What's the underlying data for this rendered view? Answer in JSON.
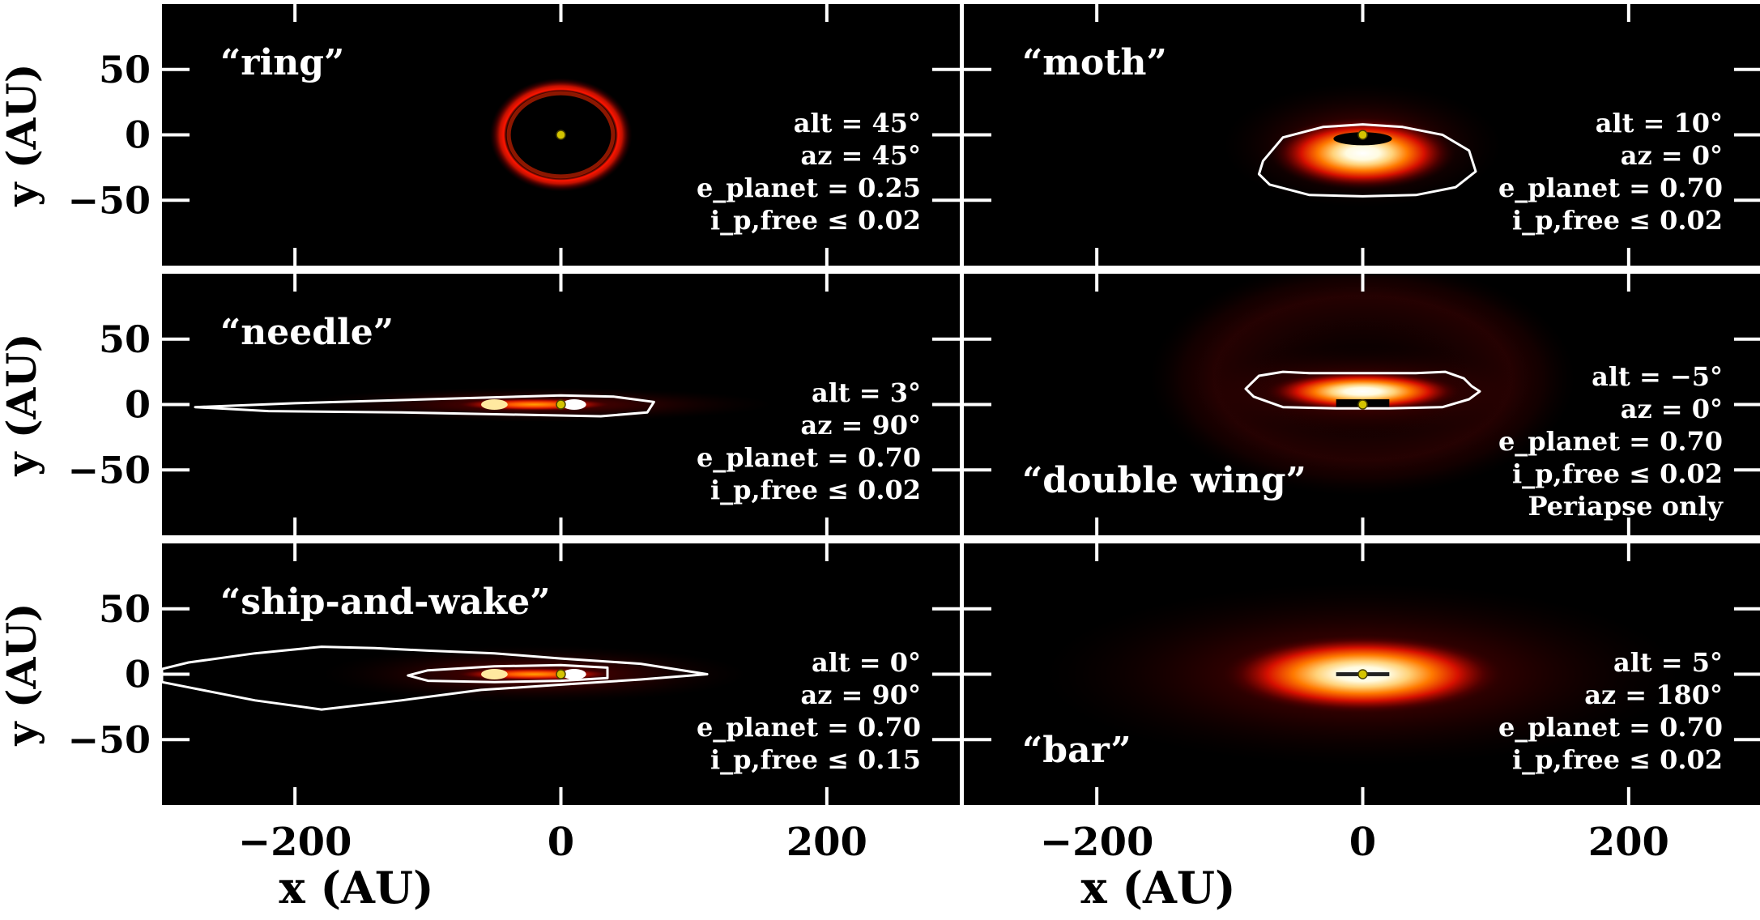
{
  "chart_data": {
    "type": "heatmap",
    "layout": {
      "rows": 3,
      "cols": 2
    },
    "xlabel": "x (AU)",
    "ylabel": "y (AU)",
    "xlim": [
      -300,
      300
    ],
    "ylim": [
      -100,
      100
    ],
    "xticks": [
      -200,
      0,
      200
    ],
    "xtick_labels": [
      "−200",
      "0",
      "200"
    ],
    "yticks": [
      50,
      0,
      -50
    ],
    "ytick_labels": [
      "50",
      "0",
      "−50"
    ],
    "colors": {
      "background": "#000000",
      "star": "#d4c400",
      "contour": "#ffffff",
      "frame": "#ffffff"
    },
    "panels": [
      {
        "id": "ring",
        "title": "“ring”",
        "title_pos": "top-left",
        "params": [
          "alt = 45°",
          "az = 45°",
          "e_planet = 0.25",
          "i_p,free ≤ 0.02"
        ],
        "star": [
          0,
          0
        ],
        "morphology": {
          "shape": "ring",
          "center": [
            0,
            0
          ],
          "radius_x": 37,
          "radius_y": 30
        },
        "contours": []
      },
      {
        "id": "moth",
        "title": "“moth”",
        "title_pos": "top-left",
        "params": [
          "alt = 10°",
          "az = 0°",
          "e_planet = 0.70",
          "i_p,free ≤ 0.02"
        ],
        "star": [
          0,
          0
        ],
        "morphology": {
          "shape": "arc",
          "center": [
            0,
            -8
          ],
          "radius_x": 70,
          "radius_y": 28
        },
        "contours": [
          {
            "points": [
              [
                -75,
                -20
              ],
              [
                -60,
                -2
              ],
              [
                -30,
                6
              ],
              [
                0,
                8
              ],
              [
                30,
                6
              ],
              [
                60,
                0
              ],
              [
                80,
                -12
              ],
              [
                85,
                -28
              ],
              [
                70,
                -40
              ],
              [
                40,
                -46
              ],
              [
                0,
                -47
              ],
              [
                -40,
                -46
              ],
              [
                -70,
                -38
              ],
              [
                -78,
                -30
              ],
              [
                -75,
                -20
              ]
            ]
          }
        ]
      },
      {
        "id": "needle",
        "title": "“needle”",
        "title_pos": "top-left",
        "params": [
          "alt = 3°",
          "az = 90°",
          "e_planet = 0.70",
          "i_p,free ≤ 0.02"
        ],
        "star": [
          0,
          0
        ],
        "morphology": {
          "shape": "needle",
          "center": [
            -20,
            0
          ],
          "radius_x": 180,
          "radius_y": 6
        },
        "contours": [
          {
            "points": [
              [
                -275,
                -2
              ],
              [
                -200,
                1
              ],
              [
                -100,
                4
              ],
              [
                0,
                7
              ],
              [
                40,
                6
              ],
              [
                70,
                2
              ],
              [
                65,
                -6
              ],
              [
                30,
                -9
              ],
              [
                -20,
                -8
              ],
              [
                -120,
                -6
              ],
              [
                -220,
                -5
              ],
              [
                -275,
                -2
              ]
            ]
          }
        ]
      },
      {
        "id": "double wing",
        "title": "“double wing”",
        "title_pos": "bottom-left",
        "params": [
          "alt = −5°",
          "az = 0°",
          "e_planet = 0.70",
          "i_p,free ≤ 0.02",
          "Periapse only"
        ],
        "star": [
          0,
          0
        ],
        "morphology": {
          "shape": "double-wing",
          "center": [
            0,
            10
          ],
          "radius_x": 75,
          "radius_y": 16
        },
        "contours": [
          {
            "points": [
              [
                -88,
                12
              ],
              [
                -78,
                22
              ],
              [
                -60,
                25
              ],
              [
                -40,
                24
              ],
              [
                0,
                24
              ],
              [
                40,
                24
              ],
              [
                62,
                25
              ],
              [
                76,
                20
              ],
              [
                82,
                14
              ],
              [
                88,
                10
              ],
              [
                80,
                4
              ],
              [
                60,
                -2
              ],
              [
                20,
                -3
              ],
              [
                -20,
                -3
              ],
              [
                -60,
                -2
              ],
              [
                -82,
                6
              ],
              [
                -88,
                12
              ]
            ]
          }
        ]
      },
      {
        "id": "ship-and-wake",
        "title": "“ship-and-wake”",
        "title_pos": "top-left",
        "params": [
          "alt = 0°",
          "az = 90°",
          "e_planet = 0.70",
          "i_p,free ≤ 0.15"
        ],
        "star": [
          0,
          0
        ],
        "morphology": {
          "shape": "needle",
          "center": [
            -20,
            0
          ],
          "radius_x": 160,
          "radius_y": 10
        },
        "contours": [
          {
            "points": [
              [
                -300,
                4
              ],
              [
                -280,
                9
              ],
              [
                -230,
                16
              ],
              [
                -180,
                21
              ],
              [
                -140,
                20
              ],
              [
                -100,
                18
              ],
              [
                -50,
                16
              ],
              [
                0,
                12
              ],
              [
                60,
                8
              ],
              [
                110,
                0
              ],
              [
                60,
                -4
              ],
              [
                0,
                -8
              ],
              [
                -60,
                -12
              ],
              [
                -120,
                -20
              ],
              [
                -180,
                -27
              ],
              [
                -230,
                -20
              ],
              [
                -280,
                -10
              ],
              [
                -300,
                -6
              ]
            ]
          },
          {
            "points": [
              [
                -115,
                -1
              ],
              [
                -100,
                3
              ],
              [
                -50,
                6
              ],
              [
                0,
                7
              ],
              [
                35,
                5
              ],
              [
                35,
                -3
              ],
              [
                0,
                -5
              ],
              [
                -50,
                -6
              ],
              [
                -100,
                -5
              ],
              [
                -115,
                -1
              ]
            ]
          }
        ]
      },
      {
        "id": "bar",
        "title": "“bar”",
        "title_pos": "bottom-left",
        "params": [
          "alt = 5°",
          "az = 180°",
          "e_planet = 0.70",
          "i_p,free ≤ 0.02"
        ],
        "star": [
          0,
          0
        ],
        "morphology": {
          "shape": "bar",
          "center": [
            0,
            0
          ],
          "radius_x": 70,
          "radius_y": 14
        },
        "contours": []
      }
    ]
  }
}
